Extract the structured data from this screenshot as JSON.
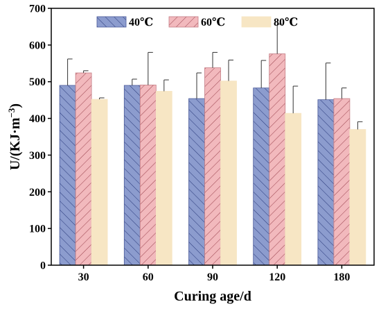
{
  "chart_data": {
    "type": "bar",
    "xlabel": "Curing age/d",
    "ylabel": "U/(KJ·m",
    "ylabel_superscript": "−3",
    "ylabel_close": ")",
    "categories": [
      "30",
      "60",
      "90",
      "120",
      "180"
    ],
    "ylim": [
      0,
      700
    ],
    "yticks": [
      0,
      100,
      200,
      300,
      400,
      500,
      600,
      700
    ],
    "grid": false,
    "legend_position": "top",
    "series": [
      {
        "name": "40℃",
        "color": "#8C9CCE",
        "hatch": "forward-diagonal",
        "values": [
          490,
          490,
          454,
          483,
          451
        ],
        "errors": [
          72,
          17,
          70,
          75,
          100
        ]
      },
      {
        "name": "60℃",
        "color": "#F2B9BD",
        "hatch": "back-diagonal",
        "values": [
          524,
          491,
          538,
          576,
          454
        ],
        "errors": [
          6,
          89,
          42,
          81,
          29
        ]
      },
      {
        "name": "80℃",
        "color": "#F7E6C4",
        "hatch": "none",
        "values": [
          452,
          474,
          502,
          414,
          370
        ],
        "errors": [
          4,
          31,
          57,
          74,
          21
        ]
      }
    ]
  }
}
